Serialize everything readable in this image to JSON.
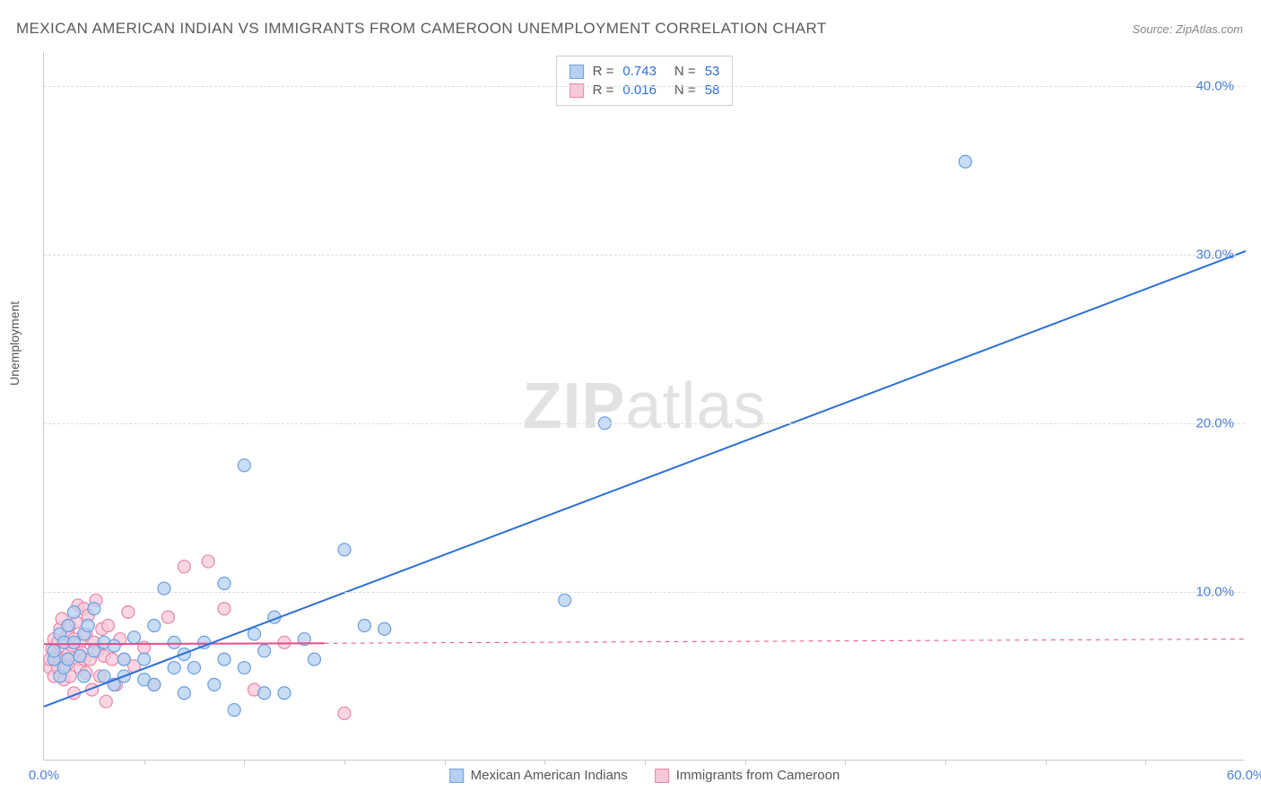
{
  "title": "MEXICAN AMERICAN INDIAN VS IMMIGRANTS FROM CAMEROON UNEMPLOYMENT CORRELATION CHART",
  "source": "Source: ZipAtlas.com",
  "y_axis_label": "Unemployment",
  "watermark_bold": "ZIP",
  "watermark_light": "atlas",
  "chart": {
    "type": "scatter",
    "xlim": [
      0,
      60
    ],
    "ylim": [
      0,
      42
    ],
    "x_ticks": [
      0,
      60
    ],
    "x_tick_labels": [
      "0.0%",
      "60.0%"
    ],
    "x_minor_marks": [
      5,
      10,
      15,
      20,
      25,
      30,
      35,
      40,
      45,
      50,
      55
    ],
    "y_ticks": [
      10,
      20,
      30,
      40
    ],
    "y_tick_labels": [
      "10.0%",
      "20.0%",
      "30.0%",
      "40.0%"
    ],
    "background_color": "#ffffff",
    "grid_color": "#dddddd",
    "axis_color": "#cccccc",
    "tick_label_color": "#4a7fd8"
  },
  "series_blue": {
    "name": "Mexican American Indians",
    "marker_fill": "#b6d0f0",
    "marker_stroke": "#6a9fe0",
    "marker_radius": 7,
    "line_color": "#2d6fd8",
    "line_width": 2,
    "trend": {
      "x1": 0,
      "y1": 3.2,
      "x2": 60,
      "y2": 30.2
    },
    "R_label": "R =",
    "R": "0.743",
    "N_label": "N =",
    "N": "53",
    "points": [
      [
        0.5,
        6.0
      ],
      [
        0.5,
        6.5
      ],
      [
        0.8,
        7.5
      ],
      [
        0.8,
        5.0
      ],
      [
        1.0,
        7.0
      ],
      [
        1.0,
        5.5
      ],
      [
        1.2,
        6.0
      ],
      [
        1.2,
        8.0
      ],
      [
        1.5,
        7.0
      ],
      [
        1.5,
        8.8
      ],
      [
        1.8,
        6.2
      ],
      [
        2.0,
        7.5
      ],
      [
        2.0,
        5.0
      ],
      [
        2.2,
        8.0
      ],
      [
        2.5,
        6.5
      ],
      [
        2.5,
        9.0
      ],
      [
        3.0,
        5.0
      ],
      [
        3.0,
        7.0
      ],
      [
        3.5,
        6.8
      ],
      [
        3.5,
        4.5
      ],
      [
        4.0,
        6.0
      ],
      [
        4.0,
        5.0
      ],
      [
        4.5,
        7.3
      ],
      [
        5.0,
        4.8
      ],
      [
        5.0,
        6.0
      ],
      [
        5.5,
        8.0
      ],
      [
        5.5,
        4.5
      ],
      [
        6.0,
        10.2
      ],
      [
        6.5,
        5.5
      ],
      [
        6.5,
        7.0
      ],
      [
        7.0,
        4.0
      ],
      [
        7.0,
        6.3
      ],
      [
        7.5,
        5.5
      ],
      [
        8.0,
        7.0
      ],
      [
        8.5,
        4.5
      ],
      [
        9.0,
        6.0
      ],
      [
        9.0,
        10.5
      ],
      [
        9.5,
        3.0
      ],
      [
        10.0,
        5.5
      ],
      [
        10.0,
        17.5
      ],
      [
        10.5,
        7.5
      ],
      [
        11.0,
        4.0
      ],
      [
        11.0,
        6.5
      ],
      [
        11.5,
        8.5
      ],
      [
        12.0,
        4.0
      ],
      [
        13.0,
        7.2
      ],
      [
        13.5,
        6.0
      ],
      [
        15.0,
        12.5
      ],
      [
        16.0,
        8.0
      ],
      [
        17.0,
        7.8
      ],
      [
        26.0,
        9.5
      ],
      [
        28.0,
        20.0
      ],
      [
        46.0,
        35.5
      ]
    ]
  },
  "series_pink": {
    "name": "Immigrants from Cameroon",
    "marker_fill": "#f7c8d8",
    "marker_stroke": "#e986ab",
    "marker_radius": 7,
    "line_color": "#e64c8a",
    "line_width": 2,
    "R_label": "R =",
    "R": "0.016",
    "N_label": "N =",
    "N": "58",
    "trend_solid": {
      "x1": 0,
      "y1": 6.9,
      "x2": 14,
      "y2": 6.95
    },
    "trend_dash": {
      "x1": 14,
      "y1": 6.95,
      "x2": 60,
      "y2": 7.2
    },
    "points": [
      [
        0.3,
        5.5
      ],
      [
        0.3,
        6.0
      ],
      [
        0.4,
        6.6
      ],
      [
        0.5,
        5.0
      ],
      [
        0.5,
        7.2
      ],
      [
        0.6,
        6.2
      ],
      [
        0.7,
        7.0
      ],
      [
        0.7,
        5.5
      ],
      [
        0.8,
        7.8
      ],
      [
        0.8,
        6.1
      ],
      [
        0.9,
        8.4
      ],
      [
        1.0,
        6.0
      ],
      [
        1.0,
        4.8
      ],
      [
        1.1,
        7.0
      ],
      [
        1.1,
        5.6
      ],
      [
        1.2,
        7.5
      ],
      [
        1.2,
        6.3
      ],
      [
        1.3,
        8.0
      ],
      [
        1.3,
        5.0
      ],
      [
        1.4,
        6.8
      ],
      [
        1.5,
        7.2
      ],
      [
        1.5,
        4.0
      ],
      [
        1.6,
        8.2
      ],
      [
        1.7,
        6.0
      ],
      [
        1.7,
        9.2
      ],
      [
        1.8,
        5.5
      ],
      [
        1.8,
        7.0
      ],
      [
        1.9,
        6.4
      ],
      [
        2.0,
        9.0
      ],
      [
        2.0,
        6.0
      ],
      [
        2.1,
        7.5
      ],
      [
        2.1,
        5.2
      ],
      [
        2.2,
        8.6
      ],
      [
        2.3,
        6.0
      ],
      [
        2.4,
        4.2
      ],
      [
        2.5,
        7.0
      ],
      [
        2.6,
        9.5
      ],
      [
        2.7,
        6.5
      ],
      [
        2.8,
        5.0
      ],
      [
        2.9,
        7.8
      ],
      [
        3.0,
        6.2
      ],
      [
        3.1,
        3.5
      ],
      [
        3.2,
        8.0
      ],
      [
        3.4,
        6.0
      ],
      [
        3.6,
        4.5
      ],
      [
        3.8,
        7.2
      ],
      [
        4.0,
        6.0
      ],
      [
        4.2,
        8.8
      ],
      [
        4.5,
        5.6
      ],
      [
        5.0,
        6.7
      ],
      [
        5.5,
        4.5
      ],
      [
        6.2,
        8.5
      ],
      [
        7.0,
        11.5
      ],
      [
        8.2,
        11.8
      ],
      [
        9.0,
        9.0
      ],
      [
        10.5,
        4.2
      ],
      [
        12.0,
        7.0
      ],
      [
        15.0,
        2.8
      ]
    ]
  },
  "legend_bottom": {
    "item1": "Mexican American Indians",
    "item2": "Immigrants from Cameroon"
  }
}
